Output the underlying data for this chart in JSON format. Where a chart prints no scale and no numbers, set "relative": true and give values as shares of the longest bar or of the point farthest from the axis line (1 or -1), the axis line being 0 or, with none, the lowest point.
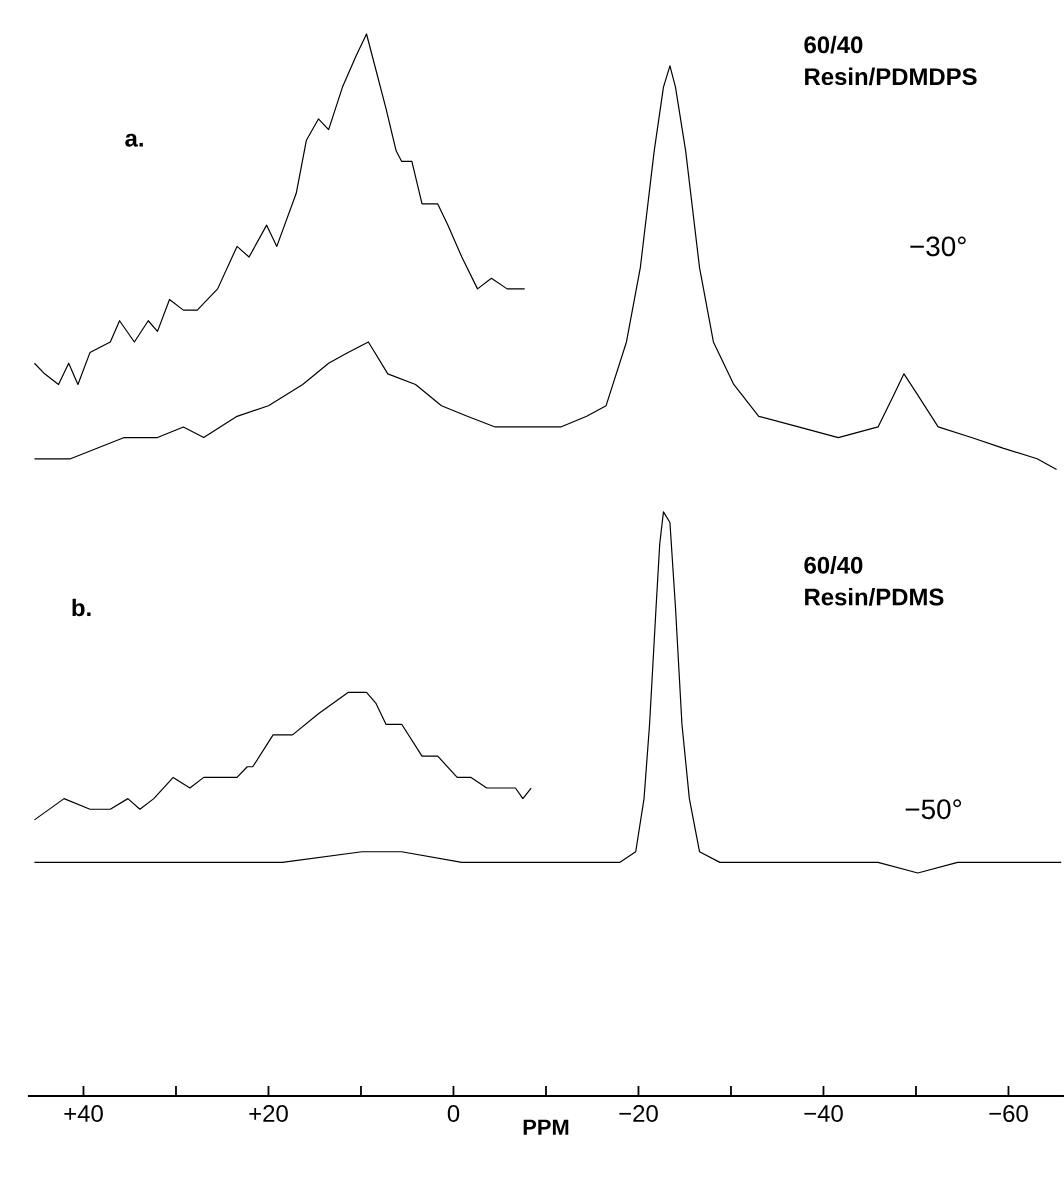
{
  "chart_data": {
    "type": "line",
    "relative": true,
    "xlim": [
      46,
      -66
    ],
    "xlabel": "PPM",
    "xticks": [
      {
        "value": 40,
        "label": "+40"
      },
      {
        "value": 30,
        "label": null
      },
      {
        "value": 20,
        "label": "+20"
      },
      {
        "value": 10,
        "label": null
      },
      0,
      {
        "value": -10,
        "label": null
      },
      {
        "value": -20,
        "label": "−20"
      },
      {
        "value": -30,
        "label": null
      },
      {
        "value": -40,
        "label": "−40"
      },
      {
        "value": -50,
        "label": null
      },
      {
        "value": -60,
        "label": "−60"
      }
    ],
    "annotations": [
      "a.",
      "60/40",
      "Resin/PDMDPS",
      "−30°",
      "b.",
      "60/40",
      "Resin/PDMS",
      "−50°"
    ],
    "series": [
      {
        "color": "#000000",
        "x": [
          45.3,
          41.4,
          35.6,
          32.0,
          29.2,
          27.0,
          23.4,
          20.0,
          16.3,
          13.5,
          11.4,
          9.2,
          7.1,
          4.1,
          1.3,
          -1.5,
          -4.5,
          -8.8,
          -11.6,
          -14.4,
          -16.5,
          -18.7,
          -20.2,
          -21.7,
          -22.7,
          -23.4,
          -24.0,
          -25.1,
          -26.6,
          -28.1,
          -30.3,
          -33.0,
          -37.3,
          -41.6,
          -45.9,
          -47.6,
          -48.7,
          -50.2,
          -52.4,
          -56.0,
          -59.4,
          -63.1,
          -65.2
        ],
        "values": [
          0.6,
          0.6,
          0.62,
          0.62,
          0.63,
          0.62,
          0.64,
          0.65,
          0.67,
          0.69,
          0.7,
          0.71,
          0.68,
          0.67,
          0.65,
          0.64,
          0.63,
          0.63,
          0.63,
          0.64,
          0.65,
          0.71,
          0.78,
          0.89,
          0.95,
          0.97,
          0.95,
          0.89,
          0.78,
          0.71,
          0.67,
          0.64,
          0.63,
          0.62,
          0.63,
          0.66,
          0.68,
          0.66,
          0.63,
          0.62,
          0.61,
          0.6,
          0.59
        ]
      },
      {
        "color": "#000000",
        "x": [
          45.3,
          44.2,
          42.7,
          41.6,
          40.6,
          39.3,
          37.1,
          36.1,
          34.5,
          33.0,
          32.0,
          30.7,
          29.2,
          27.7,
          25.5,
          23.4,
          22.1,
          20.2,
          19.1,
          17.0,
          15.9,
          14.6,
          13.5,
          12.0,
          10.5,
          9.4,
          8.8,
          7.3,
          6.2,
          5.6,
          4.5,
          3.4,
          1.7,
          0.6,
          -0.9,
          -2.6,
          -4.1,
          -5.8,
          -7.7
        ],
        "values": [
          0.69,
          0.68,
          0.67,
          0.69,
          0.67,
          0.7,
          0.71,
          0.73,
          0.71,
          0.73,
          0.72,
          0.75,
          0.74,
          0.74,
          0.76,
          0.8,
          0.79,
          0.82,
          0.8,
          0.85,
          0.9,
          0.92,
          0.91,
          0.95,
          0.98,
          1.0,
          0.98,
          0.93,
          0.89,
          0.88,
          0.88,
          0.84,
          0.84,
          0.82,
          0.79,
          0.76,
          0.77,
          0.76,
          0.76
        ]
      },
      {
        "color": "#000000",
        "x": [
          45.3,
          35.6,
          27.0,
          18.5,
          9.9,
          5.6,
          -0.9,
          -7.3,
          -13.7,
          -18.0,
          -19.7,
          -20.6,
          -21.2,
          -21.9,
          -22.3,
          -22.7,
          -23.4,
          -24.0,
          -24.7,
          -25.5,
          -26.6,
          -28.8,
          -37.3,
          -45.9,
          -50.2,
          -54.5,
          -63.1,
          -65.7
        ],
        "values": [
          0.22,
          0.22,
          0.22,
          0.22,
          0.23,
          0.23,
          0.22,
          0.22,
          0.22,
          0.22,
          0.23,
          0.28,
          0.35,
          0.46,
          0.52,
          0.55,
          0.54,
          0.46,
          0.35,
          0.28,
          0.23,
          0.22,
          0.22,
          0.22,
          0.21,
          0.22,
          0.22,
          0.22
        ]
      },
      {
        "color": "#000000",
        "x": [
          45.3,
          42.1,
          39.3,
          37.1,
          35.2,
          33.9,
          32.4,
          30.3,
          28.5,
          27.0,
          24.9,
          23.4,
          22.3,
          21.7,
          19.5,
          17.4,
          14.6,
          11.4,
          9.4,
          8.4,
          7.3,
          5.6,
          3.4,
          1.7,
          -0.4,
          -1.9,
          -3.6,
          -5.2,
          -6.7,
          -7.5,
          -8.4
        ],
        "values": [
          0.26,
          0.28,
          0.27,
          0.27,
          0.28,
          0.27,
          0.28,
          0.3,
          0.29,
          0.3,
          0.3,
          0.3,
          0.31,
          0.31,
          0.34,
          0.34,
          0.36,
          0.38,
          0.38,
          0.37,
          0.35,
          0.35,
          0.32,
          0.32,
          0.3,
          0.3,
          0.29,
          0.29,
          0.29,
          0.28,
          0.29
        ]
      }
    ]
  }
}
